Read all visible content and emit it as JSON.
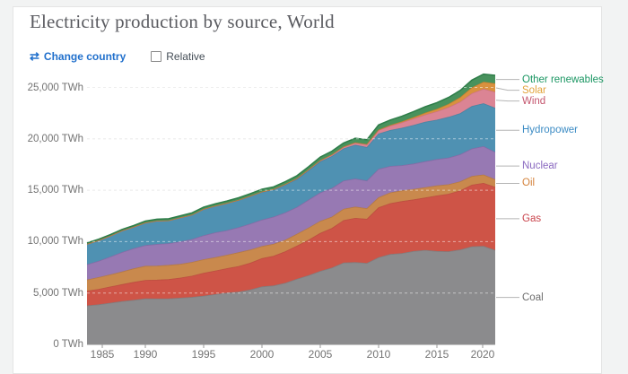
{
  "page": {
    "background": "#f2f3f3",
    "card_background": "#ffffff"
  },
  "header": {
    "title": "Electricity production by source, World",
    "change_country_icon": "⇄",
    "change_country_label": "Change country",
    "relative_label": "Relative",
    "relative_checked": false
  },
  "chart_data": {
    "type": "area",
    "stacked": true,
    "title": "Electricity production by source, World",
    "unit": "TWh",
    "grid": "dashed",
    "legend_position": "right",
    "ylim": [
      0,
      25000
    ],
    "x": [
      1985,
      1986,
      1987,
      1988,
      1989,
      1990,
      1991,
      1992,
      1993,
      1994,
      1995,
      1996,
      1997,
      1998,
      1999,
      2000,
      2001,
      2002,
      2003,
      2004,
      2005,
      2006,
      2007,
      2008,
      2009,
      2010,
      2011,
      2012,
      2013,
      2014,
      2015,
      2016,
      2017,
      2018,
      2019,
      2020
    ],
    "xticks": [
      {
        "value": 1985,
        "label": "1985"
      },
      {
        "value": 1990,
        "label": "1990"
      },
      {
        "value": 1995,
        "label": "1995"
      },
      {
        "value": 2000,
        "label": "2000"
      },
      {
        "value": 2005,
        "label": "2005"
      },
      {
        "value": 2010,
        "label": "2010"
      },
      {
        "value": 2015,
        "label": "2015"
      },
      {
        "value": 2020,
        "label": "2020"
      }
    ],
    "yticks": [
      {
        "value": 0,
        "label": "0 TWh"
      },
      {
        "value": 5000,
        "label": "5,000 TWh"
      },
      {
        "value": 10000,
        "label": "10,000 TWh"
      },
      {
        "value": 15000,
        "label": "15,000 TWh"
      },
      {
        "value": 20000,
        "label": "20,000 TWh"
      },
      {
        "value": 25000,
        "label": "25,000 TWh"
      }
    ],
    "series": [
      {
        "id": "coal",
        "label": "Coal",
        "fill": "#8b8b8d",
        "stroke": "#7a7a7c",
        "label_color": "#6e6e6e",
        "values": [
          3750,
          3860,
          4010,
          4170,
          4290,
          4430,
          4420,
          4430,
          4500,
          4580,
          4700,
          4850,
          4990,
          5100,
          5300,
          5600,
          5700,
          5950,
          6350,
          6700,
          7110,
          7440,
          7920,
          7970,
          7890,
          8440,
          8750,
          8850,
          9050,
          9150,
          9050,
          9020,
          9200,
          9500,
          9550,
          9150
        ]
      },
      {
        "id": "gas",
        "label": "Gas",
        "fill": "#ce5447",
        "stroke": "#b8463b",
        "label_color": "#c9434b",
        "values": [
          1440,
          1500,
          1580,
          1650,
          1750,
          1800,
          1840,
          1880,
          1960,
          2060,
          2230,
          2300,
          2380,
          2480,
          2610,
          2750,
          2890,
          3070,
          3220,
          3450,
          3700,
          3850,
          4130,
          4300,
          4290,
          4860,
          4950,
          5050,
          5020,
          5100,
          5400,
          5600,
          5750,
          6000,
          6120,
          6150
        ]
      },
      {
        "id": "oil",
        "label": "Oil",
        "fill": "#c9894d",
        "stroke": "#b3753a",
        "label_color": "#d4823b",
        "values": [
          1080,
          1150,
          1180,
          1230,
          1320,
          1380,
          1370,
          1390,
          1330,
          1340,
          1320,
          1300,
          1310,
          1350,
          1280,
          1180,
          1160,
          1130,
          1150,
          1180,
          1170,
          1100,
          1110,
          1100,
          1030,
          980,
          1050,
          1050,
          1020,
          1010,
          980,
          920,
          880,
          845,
          820,
          730
        ]
      },
      {
        "id": "nuclear",
        "label": "Nuclear",
        "fill": "#9779b3",
        "stroke": "#8365a1",
        "label_color": "#8a69c0",
        "values": [
          1490,
          1590,
          1740,
          1890,
          1950,
          2010,
          2100,
          2110,
          2190,
          2230,
          2330,
          2410,
          2390,
          2430,
          2530,
          2570,
          2640,
          2660,
          2610,
          2720,
          2770,
          2790,
          2750,
          2730,
          2700,
          2760,
          2570,
          2450,
          2470,
          2520,
          2560,
          2600,
          2630,
          2680,
          2760,
          2660
        ]
      },
      {
        "id": "hydropower",
        "label": "Hydropower",
        "fill": "#4f91b2",
        "stroke": "#3e7e9e",
        "label_color": "#3b8bc4",
        "values": [
          1980,
          2000,
          2030,
          2100,
          2090,
          2190,
          2260,
          2220,
          2330,
          2370,
          2550,
          2590,
          2640,
          2650,
          2680,
          2700,
          2640,
          2700,
          2730,
          2850,
          3020,
          3120,
          3120,
          3290,
          3250,
          3440,
          3500,
          3640,
          3750,
          3850,
          3830,
          3960,
          4000,
          4130,
          4180,
          4290
        ]
      },
      {
        "id": "wind",
        "label": "Wind",
        "fill": "#db8494",
        "stroke": "#c96d7f",
        "label_color": "#c4566e",
        "values": [
          0,
          0,
          0,
          1,
          2,
          4,
          4,
          5,
          6,
          7,
          8,
          9,
          12,
          16,
          21,
          31,
          38,
          52,
          63,
          85,
          104,
          133,
          171,
          221,
          276,
          342,
          430,
          520,
          640,
          700,
          820,
          950,
          1120,
          1250,
          1400,
          1560
        ]
      },
      {
        "id": "solar",
        "label": "Solar",
        "fill": "#d9913e",
        "stroke": "#c27b29",
        "label_color": "#e2a33b",
        "values": [
          0,
          0,
          0,
          0,
          0,
          0,
          0,
          0,
          0,
          0,
          0,
          0,
          0,
          0,
          0,
          1,
          1,
          2,
          2,
          3,
          4,
          5,
          7,
          12,
          20,
          32,
          62,
          95,
          130,
          185,
          250,
          320,
          440,
          570,
          690,
          830
        ]
      },
      {
        "id": "other-renewables",
        "label": "Other renewables",
        "fill": "#48925d",
        "stroke": "#2e7d49",
        "label_color": "#1a9662",
        "values": [
          130,
          135,
          140,
          150,
          160,
          180,
          185,
          190,
          200,
          210,
          220,
          225,
          230,
          240,
          250,
          260,
          265,
          275,
          285,
          310,
          350,
          370,
          390,
          430,
          460,
          500,
          520,
          545,
          575,
          605,
          635,
          665,
          695,
          740,
          780,
          810
        ]
      }
    ]
  }
}
